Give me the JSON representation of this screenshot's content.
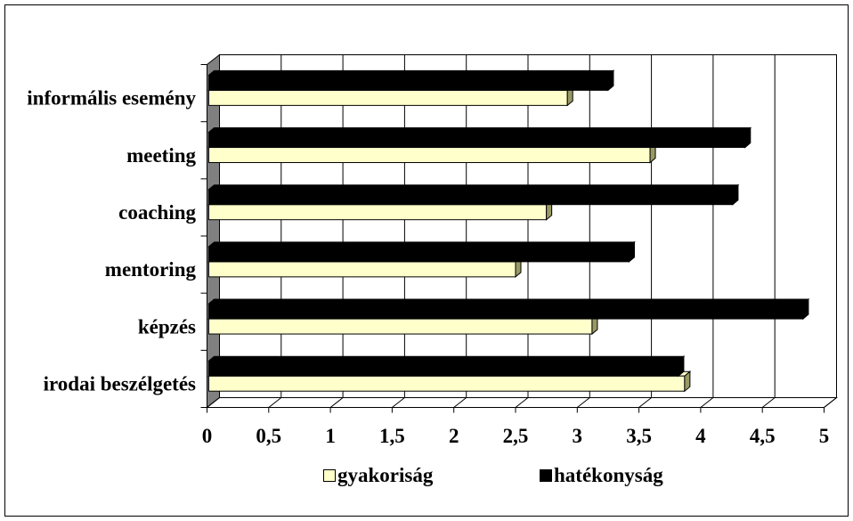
{
  "chart_data": {
    "type": "bar",
    "orientation": "horizontal",
    "style": "3d-clustered",
    "categories": [
      "informális esemény",
      "meeting",
      "coaching",
      "mentoring",
      "képzés",
      "irodai beszélgetés"
    ],
    "series": [
      {
        "name": "gyakoriság",
        "color": "#FFFFCC",
        "shade": "#999966",
        "values": [
          2.92,
          3.59,
          2.75,
          2.5,
          3.12,
          3.87
        ]
      },
      {
        "name": "hatékonyság",
        "color": "#000000",
        "shade": "#000000",
        "values": [
          3.25,
          4.36,
          4.26,
          3.42,
          4.83,
          3.82
        ]
      }
    ],
    "xlim": [
      0,
      5
    ],
    "xticks": [
      0,
      0.5,
      1,
      1.5,
      2,
      2.5,
      3,
      3.5,
      4,
      4.5,
      5
    ],
    "xtick_labels": [
      "0",
      "0,5",
      "1",
      "1,5",
      "2",
      "2,5",
      "3",
      "3,5",
      "4",
      "4,5",
      "5"
    ],
    "grid": true,
    "legend": "bottom",
    "colors": {
      "wall": "#808080"
    }
  }
}
